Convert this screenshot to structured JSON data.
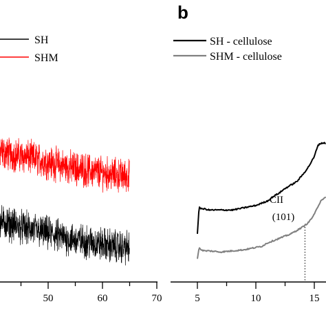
{
  "chart_data": [
    {
      "type": "line",
      "panel": "a",
      "xlabel": "",
      "ylabel": "",
      "xlim": [
        38,
        70
      ],
      "x_ticks": [
        "50",
        "60",
        "70"
      ],
      "legend": {
        "position": "top-right",
        "entries": [
          "SH",
          "SHM"
        ]
      },
      "series": [
        {
          "name": "SHM",
          "color": "#ff0000",
          "x": [
            38,
            42,
            46,
            50,
            54,
            58,
            62,
            65
          ],
          "y": [
            0.75,
            0.72,
            0.7,
            0.67,
            0.64,
            0.62,
            0.6,
            0.59
          ],
          "noise": "high-frequency"
        },
        {
          "name": "SH",
          "color": "#000000",
          "x": [
            38,
            42,
            46,
            50,
            54,
            58,
            62,
            65
          ],
          "y": [
            0.36,
            0.33,
            0.3,
            0.27,
            0.24,
            0.22,
            0.2,
            0.19
          ],
          "noise": "high-frequency"
        }
      ]
    },
    {
      "type": "line",
      "panel": "b",
      "panel_label": "b",
      "xlabel": "",
      "ylabel": "",
      "xlim": [
        4,
        16
      ],
      "x_ticks": [
        "5",
        "10",
        "15"
      ],
      "legend": {
        "position": "top-left",
        "entries": [
          "SH - cellulose",
          "SHM - cellulose"
        ]
      },
      "annotation": {
        "line1": "CII",
        "line2": "(101)",
        "x": 14.2
      },
      "series": [
        {
          "name": "SH - cellulose",
          "color": "#000000",
          "x": [
            5.0,
            5.15,
            5.3,
            5.6,
            6.0,
            7.0,
            8.0,
            9.0,
            10.0,
            10.5,
            11.0,
            11.5,
            12.0,
            12.5,
            13.0,
            13.5,
            14.0,
            14.5,
            15.0,
            15.3,
            15.6,
            16.0
          ],
          "y": [
            0.0,
            0.24,
            0.22,
            0.22,
            0.21,
            0.21,
            0.21,
            0.23,
            0.25,
            0.27,
            0.29,
            0.33,
            0.36,
            0.4,
            0.43,
            0.46,
            0.52,
            0.59,
            0.68,
            0.78,
            0.8,
            0.8
          ]
        },
        {
          "name": "SHM - cellulose",
          "color": "#808080",
          "x": [
            5.0,
            5.15,
            5.3,
            5.6,
            6.0,
            7.0,
            8.0,
            9.0,
            10.0,
            10.5,
            11.0,
            11.5,
            12.0,
            12.5,
            13.0,
            13.5,
            14.0,
            14.5,
            15.0,
            15.3,
            15.6,
            16.0
          ],
          "y": [
            -0.22,
            -0.12,
            -0.14,
            -0.15,
            -0.15,
            -0.16,
            -0.15,
            -0.14,
            -0.12,
            -0.11,
            -0.08,
            -0.06,
            -0.04,
            -0.02,
            0.0,
            0.03,
            0.06,
            0.1,
            0.17,
            0.24,
            0.3,
            0.32
          ]
        }
      ]
    }
  ]
}
